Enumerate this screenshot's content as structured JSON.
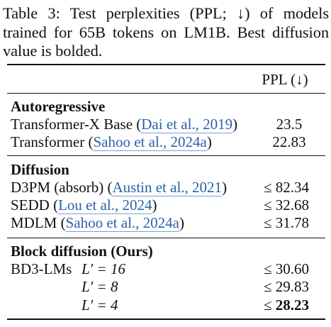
{
  "caption": {
    "label": "Table 3:",
    "text": " Test perplexities (PPL; ↓) of models trained for 65B tokens on LM1B. Best diffusion value is bolded."
  },
  "header": {
    "ppl": "PPL (↓)"
  },
  "sections": {
    "autoregressive": {
      "title": "Autoregressive",
      "rows": [
        {
          "model": "Transformer-X Base (",
          "cite": "Dai et al., 2019",
          "close": ")",
          "ppl": "23.5"
        },
        {
          "model": "Transformer (",
          "cite": "Sahoo et al., 2024a",
          "close": ")",
          "ppl": "22.83"
        }
      ]
    },
    "diffusion": {
      "title": "Diffusion",
      "rows": [
        {
          "model": "D3PM (absorb) (",
          "cite": "Austin et al., 2021",
          "close": ")",
          "ppl": "≤ 82.34"
        },
        {
          "model": "SEDD (",
          "cite": "Lou et al., 2024",
          "close": ")",
          "ppl": "≤ 32.68"
        },
        {
          "model": "MDLM (",
          "cite": "Sahoo et al., 2024a",
          "close": ")",
          "ppl": "≤ 31.78"
        }
      ]
    },
    "block": {
      "title": "Block diffusion (Ours)",
      "model": "BD3-LMs",
      "rows": [
        {
          "lprime": "L′ = 16",
          "ppl": "≤ 30.60"
        },
        {
          "lprime": "L′ = 8",
          "ppl": "≤ 29.83"
        },
        {
          "lprime": "L′ = 4",
          "ppl_prefix": "≤ ",
          "ppl_bold": "28.23"
        }
      ]
    }
  }
}
